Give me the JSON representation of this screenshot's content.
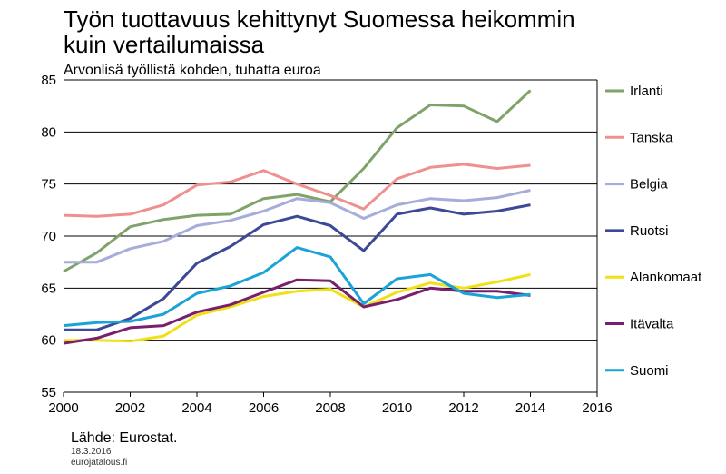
{
  "chart_data": {
    "type": "line",
    "title_lines": [
      "Työn tuottavuus kehittynyt Suomessa heikommin",
      "kuin vertailumaissa"
    ],
    "subtitle": "Arvonlisä työllistä kohden, tuhatta euroa",
    "x": [
      2000,
      2001,
      2002,
      2003,
      2004,
      2005,
      2006,
      2007,
      2008,
      2009,
      2010,
      2011,
      2012,
      2013,
      2014
    ],
    "xlim": [
      2000,
      2016
    ],
    "ylim": [
      55,
      85
    ],
    "xticks": [
      "2000",
      "2002",
      "2004",
      "2006",
      "2008",
      "2010",
      "2012",
      "2014",
      "2016"
    ],
    "yticks": [
      "55",
      "60",
      "65",
      "70",
      "75",
      "80",
      "85"
    ],
    "grid": "horizontal",
    "legend": "right",
    "series": [
      {
        "name": "Irlanti",
        "color": "#7fa36b",
        "values": [
          66.6,
          68.4,
          70.9,
          71.6,
          72.0,
          72.1,
          73.6,
          74.0,
          73.3,
          76.5,
          80.4,
          82.6,
          82.5,
          81.0,
          84.0
        ]
      },
      {
        "name": "Tanska",
        "color": "#ee9090",
        "values": [
          72.0,
          71.9,
          72.1,
          73.0,
          74.9,
          75.2,
          76.3,
          75.0,
          73.9,
          72.6,
          75.5,
          76.6,
          76.9,
          76.5,
          76.8
        ]
      },
      {
        "name": "Belgia",
        "color": "#a6addb",
        "values": [
          67.5,
          67.5,
          68.8,
          69.5,
          71.0,
          71.5,
          72.4,
          73.6,
          73.2,
          71.7,
          73.0,
          73.6,
          73.4,
          73.7,
          74.4
        ]
      },
      {
        "name": "Ruotsi",
        "color": "#3c4a96",
        "values": [
          61.0,
          61.0,
          62.1,
          64.0,
          67.4,
          69.0,
          71.1,
          71.9,
          71.0,
          68.6,
          72.1,
          72.7,
          72.1,
          72.4,
          73.0
        ]
      },
      {
        "name": "Alankomaat",
        "color": "#f0e014",
        "values": [
          60.0,
          60.0,
          59.9,
          60.4,
          62.4,
          63.2,
          64.2,
          64.7,
          64.9,
          63.2,
          64.6,
          65.5,
          65.0,
          65.6,
          66.3
        ]
      },
      {
        "name": "Itävalta",
        "color": "#7a1f6e",
        "values": [
          59.7,
          60.2,
          61.2,
          61.4,
          62.7,
          63.4,
          64.6,
          65.8,
          65.7,
          63.2,
          63.9,
          65.0,
          64.7,
          64.7,
          64.3
        ]
      },
      {
        "name": "Suomi",
        "color": "#1aa3d6",
        "values": [
          61.4,
          61.7,
          61.8,
          62.5,
          64.5,
          65.2,
          66.5,
          68.9,
          68.0,
          63.5,
          65.9,
          66.3,
          64.5,
          64.1,
          64.4
        ]
      }
    ]
  },
  "footer": {
    "source": "Lähde: Eurostat.",
    "date": "18.3.2016",
    "site": "eurojatalous.fi"
  }
}
